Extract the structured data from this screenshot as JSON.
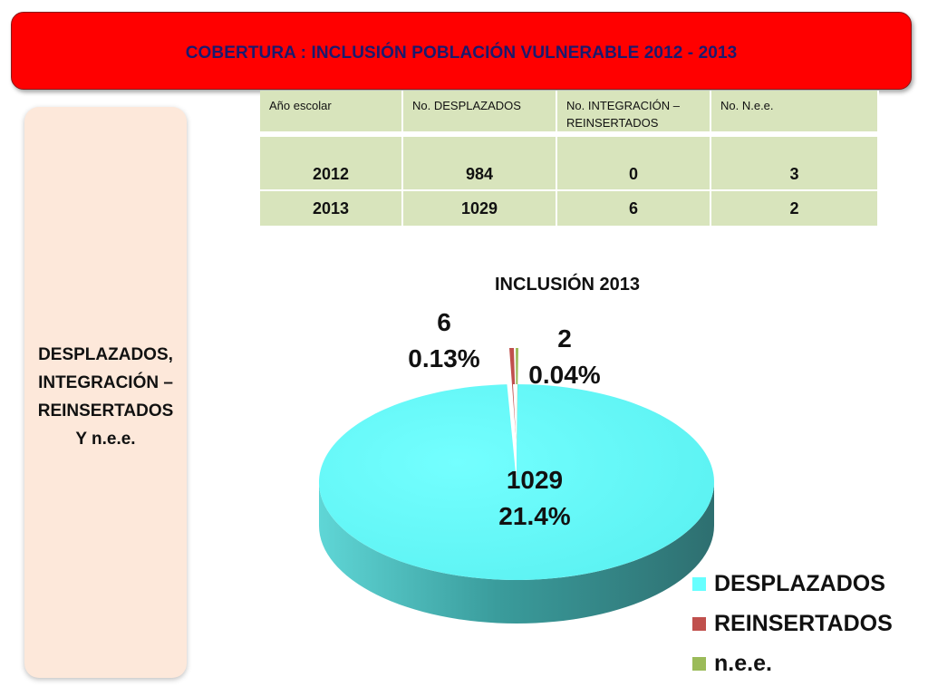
{
  "header": {
    "title": "COBERTURA :  INCLUSIÓN POBLACIÓN VULNERABLE  2012 - 2013"
  },
  "side_panel": {
    "lines": [
      "DESPLAZADOS,",
      "INTEGRACIÓN –",
      "REINSERTADOS",
      "Y n.e.e."
    ]
  },
  "table": {
    "headers": [
      "Año escolar",
      "No. DESPLAZADOS",
      "No.  INTEGRACIÓN – REINSERTADOS",
      "No. N.e.e."
    ],
    "rows": [
      [
        "2012",
        "984",
        "0",
        "3"
      ],
      [
        "2013",
        "1029",
        "6",
        "2"
      ]
    ]
  },
  "chart_data": {
    "type": "pie",
    "title": "INCLUSIÓN 2013",
    "categories": [
      "DESPLAZADOS",
      "REINSERTADOS",
      "n.e.e."
    ],
    "values": [
      1029,
      6,
      2
    ],
    "value_labels": [
      "1029",
      "6",
      "2"
    ],
    "percent_labels": [
      "21.4%",
      "0.13%",
      "0.04%"
    ],
    "colors": [
      "#66ffff",
      "#c0504d",
      "#9bbb59"
    ],
    "legend_position": "bottom-right",
    "style": "3d"
  }
}
